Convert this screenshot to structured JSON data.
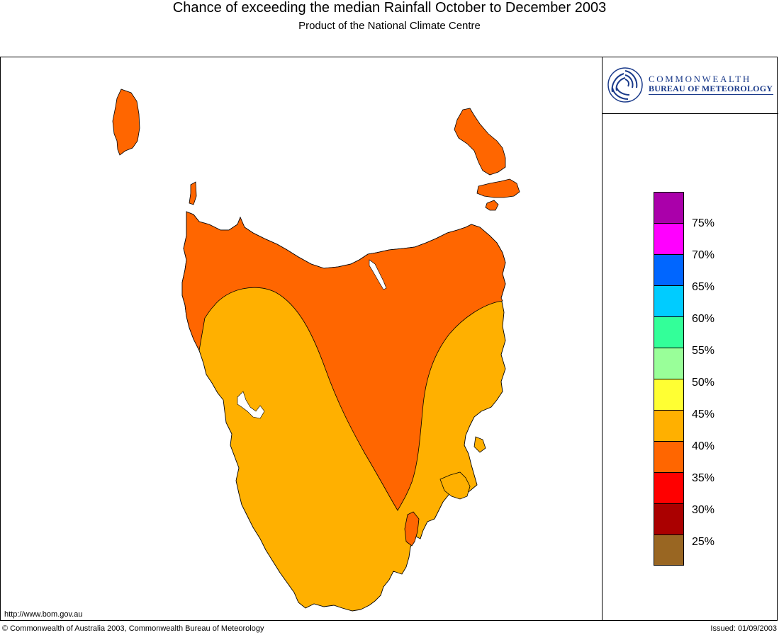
{
  "header": {
    "title": "Chance of exceeding the median Rainfall October to December 2003",
    "subtitle": "Product of the National Climate Centre"
  },
  "logo": {
    "line1": "COMMONWEALTH",
    "line2": "BUREAU OF METEOROLOGY",
    "icon": "bom-swirl-icon"
  },
  "legend": {
    "swatches": [
      {
        "color": "#aa00aa"
      },
      {
        "color": "#ff00ff"
      },
      {
        "color": "#0066ff"
      },
      {
        "color": "#00ccff"
      },
      {
        "color": "#33ff99"
      },
      {
        "color": "#99ff99"
      },
      {
        "color": "#ffff33"
      },
      {
        "color": "#ffb000"
      },
      {
        "color": "#ff6600"
      },
      {
        "color": "#ff0000"
      },
      {
        "color": "#aa0000"
      },
      {
        "color": "#996622"
      }
    ],
    "labels": [
      "75%",
      "70%",
      "65%",
      "60%",
      "55%",
      "50%",
      "45%",
      "40%",
      "35%",
      "30%",
      "25%"
    ]
  },
  "map": {
    "zones": [
      {
        "range": "35-40%",
        "color": "#ff6600"
      },
      {
        "range": "40-45%",
        "color": "#ffb000"
      }
    ]
  },
  "footer": {
    "url": "http://www.bom.gov.au",
    "copyright": "© Commonwealth of Australia 2003, Commonwealth Bureau of Meteorology",
    "issued": "Issued: 01/09/2003"
  }
}
